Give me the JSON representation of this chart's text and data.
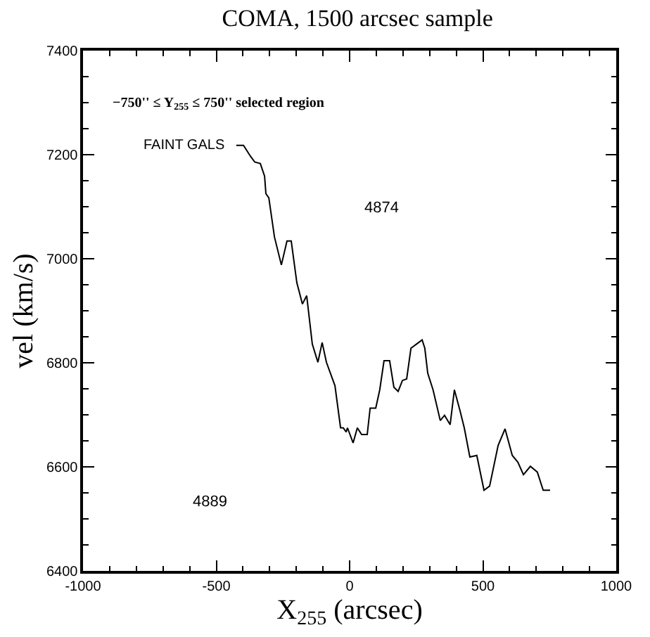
{
  "chart_data": {
    "type": "line",
    "title": "COMA, 1500 arcsec sample",
    "xlabel": "X$_{255}$ (arcsec)",
    "ylabel": "vel (km/s)",
    "annotations": [
      "−750'' ≤ Y$_{255}$ ≤ 750'' selected region",
      "4874",
      "4889"
    ],
    "series": [
      {
        "name": "FAINT GALS",
        "color": "#000000",
        "x": [
          -425,
          -398,
          -372,
          -356,
          -335,
          -319,
          -314,
          -303,
          -282,
          -256,
          -235,
          -219,
          -198,
          -177,
          -161,
          -140,
          -119,
          -103,
          -87,
          -55,
          -34,
          -24,
          -13,
          -8,
          13,
          29,
          45,
          66,
          77,
          98,
          113,
          129,
          150,
          166,
          182,
          198,
          214,
          230,
          251,
          272,
          282,
          293,
          313,
          340,
          356,
          377,
          393,
          414,
          430,
          451,
          477,
          504,
          525,
          557,
          583,
          610,
          631,
          652,
          678,
          704,
          726,
          752
        ],
        "values": [
          7218,
          7218,
          7197,
          7186,
          7183,
          7159,
          7125,
          7117,
          7042,
          6988,
          7034,
          7034,
          6954,
          6913,
          6929,
          6836,
          6801,
          6839,
          6801,
          6756,
          6675,
          6675,
          6667,
          6675,
          6646,
          6675,
          6662,
          6662,
          6713,
          6713,
          6748,
          6804,
          6804,
          6753,
          6745,
          6766,
          6769,
          6828,
          6836,
          6844,
          6828,
          6780,
          6748,
          6689,
          6699,
          6681,
          6748,
          6708,
          6675,
          6619,
          6622,
          6555,
          6563,
          6641,
          6673,
          6622,
          6609,
          6585,
          6601,
          6590,
          6555,
          6555
        ]
      }
    ],
    "xlim": [
      -1000,
      1000
    ],
    "xticks": [
      -1000,
      -500,
      0,
      500,
      1000
    ],
    "ylim": [
      6400,
      7400
    ],
    "yticks": [
      6400,
      6600,
      6800,
      7000,
      7200,
      7400
    ],
    "legend": false,
    "marker": "none",
    "line_style": "solid"
  }
}
